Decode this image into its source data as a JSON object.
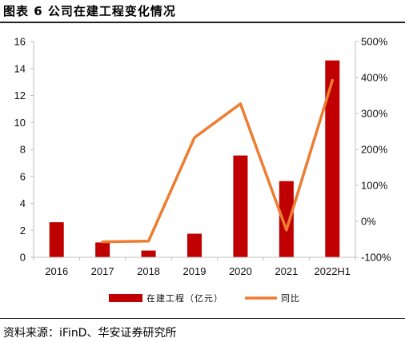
{
  "header": {
    "title": "图表 6 公司在建工程变化情况"
  },
  "footer": {
    "source": "资料来源：iFinD、华安证券研究所"
  },
  "colors": {
    "bar": "#c00000",
    "line": "#ed7d31",
    "axis": "#bfbfbf"
  },
  "chart_data": {
    "type": "bar",
    "categories": [
      "2016",
      "2017",
      "2018",
      "2019",
      "2020",
      "2021",
      "2022H1"
    ],
    "series": [
      {
        "name": "在建工程（亿元）",
        "type": "bar",
        "axis": "left",
        "values": [
          2.6,
          1.1,
          0.5,
          1.75,
          7.55,
          5.65,
          14.6
        ]
      },
      {
        "name": "同比",
        "type": "line",
        "axis": "right",
        "unit": "%",
        "values": [
          null,
          -57,
          -55,
          233,
          327,
          -24,
          392
        ]
      }
    ],
    "y_left": {
      "min": 0,
      "max": 16,
      "ticks": [
        "0",
        "2",
        "4",
        "6",
        "8",
        "10",
        "12",
        "14",
        "16"
      ]
    },
    "y_right": {
      "min": -100,
      "max": 500,
      "ticks": [
        "-100%",
        "0%",
        "100%",
        "200%",
        "300%",
        "400%",
        "500%"
      ]
    },
    "legend": {
      "position": "bottom"
    },
    "grid": false
  }
}
